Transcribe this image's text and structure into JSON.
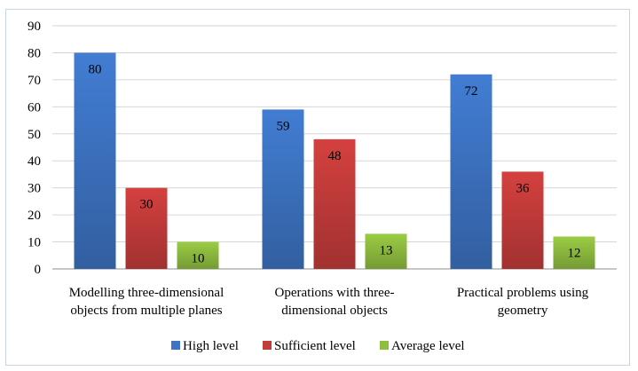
{
  "chart_data": {
    "type": "bar",
    "title": "",
    "xlabel": "",
    "ylabel": "",
    "ylim": [
      0,
      90
    ],
    "yticks": [
      0,
      10,
      20,
      30,
      40,
      50,
      60,
      70,
      80,
      90
    ],
    "grid": true,
    "legend_position": "bottom",
    "categories": [
      [
        "Modelling three-dimensional",
        "objects from multiple planes"
      ],
      [
        "Operations with three-",
        "dimensional objects"
      ],
      [
        "Practical problems using",
        "geometry"
      ]
    ],
    "series": [
      {
        "name": "High level",
        "color": "#3d74c3",
        "values": [
          80,
          59,
          72
        ]
      },
      {
        "name": "Sufficient level",
        "color": "#c43c3a",
        "values": [
          30,
          48,
          36
        ]
      },
      {
        "name": "Average level",
        "color": "#8fbd3f",
        "values": [
          10,
          13,
          12
        ]
      }
    ]
  }
}
